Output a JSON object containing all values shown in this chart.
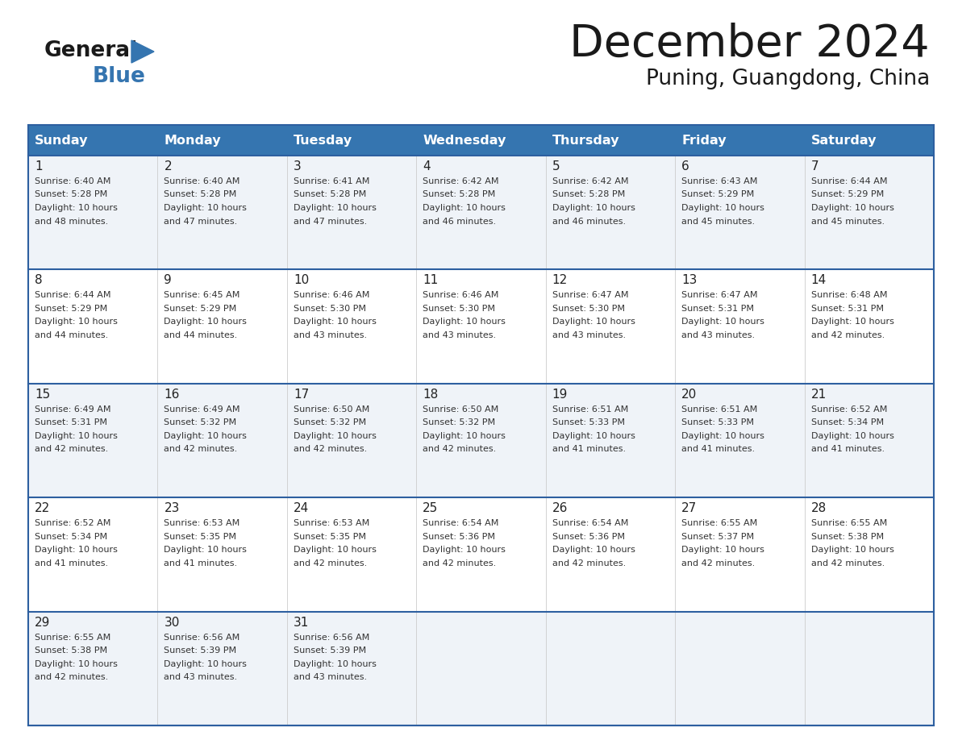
{
  "title": "December 2024",
  "subtitle": "Puning, Guangdong, China",
  "days_of_week": [
    "Sunday",
    "Monday",
    "Tuesday",
    "Wednesday",
    "Thursday",
    "Friday",
    "Saturday"
  ],
  "header_bg_color": "#3575b0",
  "header_text_color": "#ffffff",
  "row_bg_odd": "#eff3f8",
  "row_bg_even": "#ffffff",
  "day_number_color": "#222222",
  "cell_text_color": "#333333",
  "divider_color": "#2d5fa0",
  "title_color": "#1a1a1a",
  "subtitle_color": "#1a1a1a",
  "calendar_data": [
    [
      {
        "day": 1,
        "sunrise": "6:40 AM",
        "sunset": "5:28 PM",
        "daylight_hours": 10,
        "daylight_minutes": 48
      },
      {
        "day": 2,
        "sunrise": "6:40 AM",
        "sunset": "5:28 PM",
        "daylight_hours": 10,
        "daylight_minutes": 47
      },
      {
        "day": 3,
        "sunrise": "6:41 AM",
        "sunset": "5:28 PM",
        "daylight_hours": 10,
        "daylight_minutes": 47
      },
      {
        "day": 4,
        "sunrise": "6:42 AM",
        "sunset": "5:28 PM",
        "daylight_hours": 10,
        "daylight_minutes": 46
      },
      {
        "day": 5,
        "sunrise": "6:42 AM",
        "sunset": "5:28 PM",
        "daylight_hours": 10,
        "daylight_minutes": 46
      },
      {
        "day": 6,
        "sunrise": "6:43 AM",
        "sunset": "5:29 PM",
        "daylight_hours": 10,
        "daylight_minutes": 45
      },
      {
        "day": 7,
        "sunrise": "6:44 AM",
        "sunset": "5:29 PM",
        "daylight_hours": 10,
        "daylight_minutes": 45
      }
    ],
    [
      {
        "day": 8,
        "sunrise": "6:44 AM",
        "sunset": "5:29 PM",
        "daylight_hours": 10,
        "daylight_minutes": 44
      },
      {
        "day": 9,
        "sunrise": "6:45 AM",
        "sunset": "5:29 PM",
        "daylight_hours": 10,
        "daylight_minutes": 44
      },
      {
        "day": 10,
        "sunrise": "6:46 AM",
        "sunset": "5:30 PM",
        "daylight_hours": 10,
        "daylight_minutes": 43
      },
      {
        "day": 11,
        "sunrise": "6:46 AM",
        "sunset": "5:30 PM",
        "daylight_hours": 10,
        "daylight_minutes": 43
      },
      {
        "day": 12,
        "sunrise": "6:47 AM",
        "sunset": "5:30 PM",
        "daylight_hours": 10,
        "daylight_minutes": 43
      },
      {
        "day": 13,
        "sunrise": "6:47 AM",
        "sunset": "5:31 PM",
        "daylight_hours": 10,
        "daylight_minutes": 43
      },
      {
        "day": 14,
        "sunrise": "6:48 AM",
        "sunset": "5:31 PM",
        "daylight_hours": 10,
        "daylight_minutes": 42
      }
    ],
    [
      {
        "day": 15,
        "sunrise": "6:49 AM",
        "sunset": "5:31 PM",
        "daylight_hours": 10,
        "daylight_minutes": 42
      },
      {
        "day": 16,
        "sunrise": "6:49 AM",
        "sunset": "5:32 PM",
        "daylight_hours": 10,
        "daylight_minutes": 42
      },
      {
        "day": 17,
        "sunrise": "6:50 AM",
        "sunset": "5:32 PM",
        "daylight_hours": 10,
        "daylight_minutes": 42
      },
      {
        "day": 18,
        "sunrise": "6:50 AM",
        "sunset": "5:32 PM",
        "daylight_hours": 10,
        "daylight_minutes": 42
      },
      {
        "day": 19,
        "sunrise": "6:51 AM",
        "sunset": "5:33 PM",
        "daylight_hours": 10,
        "daylight_minutes": 41
      },
      {
        "day": 20,
        "sunrise": "6:51 AM",
        "sunset": "5:33 PM",
        "daylight_hours": 10,
        "daylight_minutes": 41
      },
      {
        "day": 21,
        "sunrise": "6:52 AM",
        "sunset": "5:34 PM",
        "daylight_hours": 10,
        "daylight_minutes": 41
      }
    ],
    [
      {
        "day": 22,
        "sunrise": "6:52 AM",
        "sunset": "5:34 PM",
        "daylight_hours": 10,
        "daylight_minutes": 41
      },
      {
        "day": 23,
        "sunrise": "6:53 AM",
        "sunset": "5:35 PM",
        "daylight_hours": 10,
        "daylight_minutes": 41
      },
      {
        "day": 24,
        "sunrise": "6:53 AM",
        "sunset": "5:35 PM",
        "daylight_hours": 10,
        "daylight_minutes": 42
      },
      {
        "day": 25,
        "sunrise": "6:54 AM",
        "sunset": "5:36 PM",
        "daylight_hours": 10,
        "daylight_minutes": 42
      },
      {
        "day": 26,
        "sunrise": "6:54 AM",
        "sunset": "5:36 PM",
        "daylight_hours": 10,
        "daylight_minutes": 42
      },
      {
        "day": 27,
        "sunrise": "6:55 AM",
        "sunset": "5:37 PM",
        "daylight_hours": 10,
        "daylight_minutes": 42
      },
      {
        "day": 28,
        "sunrise": "6:55 AM",
        "sunset": "5:38 PM",
        "daylight_hours": 10,
        "daylight_minutes": 42
      }
    ],
    [
      {
        "day": 29,
        "sunrise": "6:55 AM",
        "sunset": "5:38 PM",
        "daylight_hours": 10,
        "daylight_minutes": 42
      },
      {
        "day": 30,
        "sunrise": "6:56 AM",
        "sunset": "5:39 PM",
        "daylight_hours": 10,
        "daylight_minutes": 43
      },
      {
        "day": 31,
        "sunrise": "6:56 AM",
        "sunset": "5:39 PM",
        "daylight_hours": 10,
        "daylight_minutes": 43
      },
      null,
      null,
      null,
      null
    ]
  ]
}
